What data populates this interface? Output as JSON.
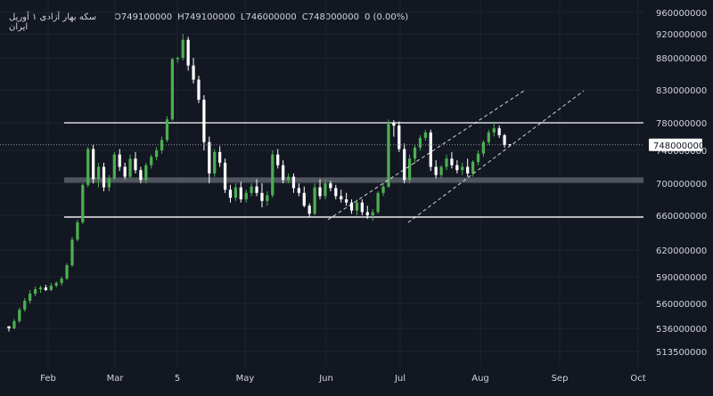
{
  "legend": {
    "symbol": "سکه بهار آزادی ۱ آوریل ایران",
    "open": "O749100000",
    "high": "H749100000",
    "low": "L746000000",
    "close": "C748000000",
    "change": "0 (0.00%)"
  },
  "colors": {
    "background": "#131722",
    "up": "#4caf50",
    "down": "#ffffff",
    "grid": "#1f2330",
    "level_line": "#ffffff",
    "zone": "#5d606b",
    "channel": "#ffffff"
  },
  "chart_data": {
    "type": "candlestick",
    "x_ticks": [
      "Feb",
      "Mar",
      "5",
      "May",
      "Jun",
      "Jul",
      "Aug",
      "Sep",
      "Oct"
    ],
    "y_ticks": [
      960000000,
      920000000,
      880000000,
      830000000,
      780000000,
      740000000,
      700000000,
      660000000,
      620000000,
      590000000,
      560000000,
      536000000,
      513500000
    ],
    "y_tick_labels": [
      "960000000",
      "920000000",
      "880000000",
      "830000000",
      "780000000",
      "740000000",
      "700000000",
      "660000000",
      "620000000",
      "590000000",
      "560000000",
      "536000000",
      "513500000"
    ],
    "last_price": 748000000,
    "last_price_label": "748000000",
    "ohlc": {
      "open": 749100000,
      "high": 749100000,
      "low": 746000000,
      "close": 748000000
    },
    "horizontal_levels": [
      {
        "value": 780000000,
        "style": "solid"
      },
      {
        "value": 704000000,
        "style": "zone"
      },
      {
        "value": 658000000,
        "style": "solid"
      }
    ],
    "trend_channel": [
      {
        "from": [
          "Jun",
          655000000
        ],
        "to": [
          "Aug",
          815000000
        ],
        "style": "dashed"
      },
      {
        "from": [
          "Jun",
          625000000
        ],
        "to": [
          "Sep",
          805000000
        ],
        "style": "dashed"
      }
    ],
    "candles": [
      [
        538,
        538,
        533,
        536
      ],
      [
        536,
        545,
        535,
        543
      ],
      [
        543,
        556,
        541,
        554
      ],
      [
        554,
        566,
        552,
        563
      ],
      [
        563,
        575,
        560,
        571
      ],
      [
        571,
        579,
        568,
        576
      ],
      [
        576,
        580,
        572,
        578
      ],
      [
        578,
        581,
        574,
        575
      ],
      [
        575,
        583,
        574,
        580
      ],
      [
        580,
        585,
        578,
        583
      ],
      [
        583,
        590,
        580,
        588
      ],
      [
        588,
        605,
        586,
        603
      ],
      [
        603,
        635,
        601,
        632
      ],
      [
        632,
        655,
        630,
        652
      ],
      [
        652,
        700,
        650,
        698
      ],
      [
        698,
        745,
        695,
        742
      ],
      [
        742,
        748,
        700,
        705
      ],
      [
        705,
        725,
        695,
        720
      ],
      [
        720,
        725,
        690,
        695
      ],
      [
        695,
        710,
        690,
        706
      ],
      [
        706,
        738,
        704,
        735
      ],
      [
        735,
        742,
        715,
        720
      ],
      [
        720,
        725,
        705,
        708
      ],
      [
        708,
        735,
        706,
        730
      ],
      [
        730,
        738,
        712,
        716
      ],
      [
        716,
        720,
        700,
        704
      ],
      [
        704,
        725,
        700,
        722
      ],
      [
        722,
        735,
        718,
        732
      ],
      [
        732,
        745,
        728,
        740
      ],
      [
        740,
        760,
        736,
        755
      ],
      [
        755,
        790,
        752,
        785
      ],
      [
        785,
        880,
        783,
        878
      ],
      [
        878,
        882,
        872,
        880
      ],
      [
        880,
        920,
        876,
        910
      ],
      [
        910,
        915,
        860,
        868
      ],
      [
        868,
        880,
        840,
        846
      ],
      [
        846,
        852,
        810,
        815
      ],
      [
        815,
        822,
        740,
        752
      ],
      [
        752,
        760,
        700,
        712
      ],
      [
        712,
        742,
        708,
        738
      ],
      [
        738,
        746,
        720,
        725
      ],
      [
        725,
        730,
        688,
        692
      ],
      [
        692,
        698,
        676,
        682
      ],
      [
        682,
        700,
        678,
        695
      ],
      [
        695,
        702,
        676,
        680
      ],
      [
        680,
        692,
        676,
        688
      ],
      [
        688,
        700,
        684,
        696
      ],
      [
        696,
        705,
        684,
        688
      ],
      [
        688,
        700,
        670,
        678
      ],
      [
        678,
        690,
        672,
        685
      ],
      [
        685,
        740,
        682,
        735
      ],
      [
        735,
        742,
        718,
        722
      ],
      [
        722,
        728,
        700,
        704
      ],
      [
        704,
        712,
        700,
        708
      ],
      [
        708,
        712,
        688,
        694
      ],
      [
        694,
        700,
        684,
        688
      ],
      [
        688,
        696,
        670,
        672
      ],
      [
        672,
        675,
        658,
        662
      ],
      [
        662,
        700,
        660,
        695
      ],
      [
        695,
        705,
        680,
        684
      ],
      [
        684,
        705,
        680,
        700
      ],
      [
        700,
        703,
        690,
        694
      ],
      [
        694,
        698,
        680,
        684
      ],
      [
        684,
        692,
        676,
        680
      ],
      [
        680,
        688,
        672,
        676
      ],
      [
        676,
        680,
        662,
        666
      ],
      [
        666,
        680,
        660,
        676
      ],
      [
        676,
        680,
        660,
        664
      ],
      [
        664,
        672,
        656,
        660
      ],
      [
        660,
        668,
        654,
        664
      ],
      [
        664,
        690,
        662,
        688
      ],
      [
        688,
        700,
        684,
        696
      ],
      [
        696,
        785,
        694,
        780
      ],
      [
        780,
        784,
        760,
        776
      ],
      [
        776,
        782,
        738,
        742
      ],
      [
        742,
        750,
        700,
        704
      ],
      [
        704,
        735,
        700,
        730
      ],
      [
        730,
        748,
        724,
        744
      ],
      [
        744,
        762,
        740,
        758
      ],
      [
        758,
        770,
        754,
        766
      ],
      [
        766,
        770,
        715,
        720
      ],
      [
        720,
        728,
        706,
        710
      ],
      [
        710,
        722,
        706,
        720
      ],
      [
        720,
        735,
        716,
        730
      ],
      [
        730,
        738,
        718,
        722
      ],
      [
        722,
        728,
        712,
        716
      ],
      [
        716,
        725,
        710,
        720
      ],
      [
        720,
        730,
        708,
        712
      ],
      [
        712,
        728,
        708,
        726
      ],
      [
        726,
        740,
        722,
        736
      ],
      [
        736,
        755,
        732,
        752
      ],
      [
        752,
        770,
        748,
        766
      ],
      [
        766,
        782,
        760,
        772
      ],
      [
        772,
        776,
        758,
        762
      ],
      [
        762,
        764,
        744,
        748
      ],
      [
        749.1,
        749.1,
        746,
        748
      ]
    ]
  }
}
